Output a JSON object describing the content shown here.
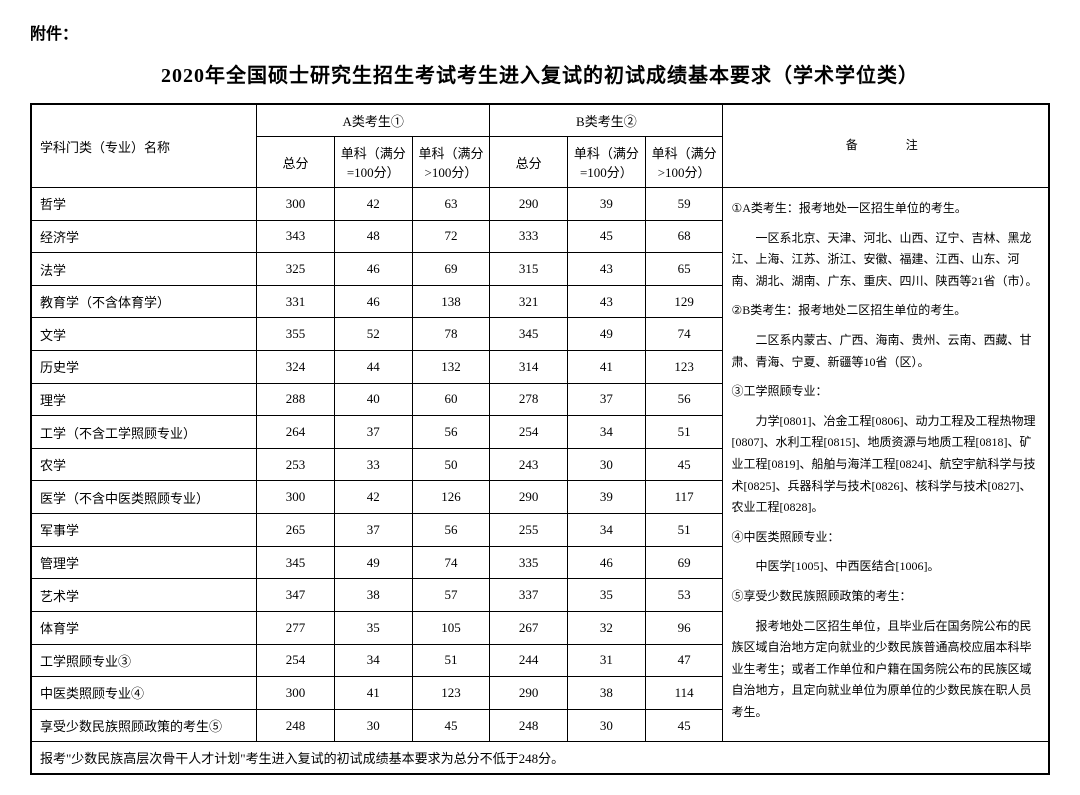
{
  "attachment_label": "附件：",
  "title": "2020年全国硕士研究生招生考试考生进入复试的初试成绩基本要求（学术学位类）",
  "headers": {
    "subject": "学科门类（专业）名称",
    "groupA": "A类考生①",
    "groupB": "B类考生②",
    "total": "总分",
    "single100": "单科（满分=100分）",
    "singleOver100": "单科（满分>100分）",
    "notes": "备　　注"
  },
  "rows": [
    {
      "name": "哲学",
      "a1": "300",
      "a2": "42",
      "a3": "63",
      "b1": "290",
      "b2": "39",
      "b3": "59"
    },
    {
      "name": "经济学",
      "a1": "343",
      "a2": "48",
      "a3": "72",
      "b1": "333",
      "b2": "45",
      "b3": "68"
    },
    {
      "name": "法学",
      "a1": "325",
      "a2": "46",
      "a3": "69",
      "b1": "315",
      "b2": "43",
      "b3": "65"
    },
    {
      "name": "教育学（不含体育学）",
      "a1": "331",
      "a2": "46",
      "a3": "138",
      "b1": "321",
      "b2": "43",
      "b3": "129"
    },
    {
      "name": "文学",
      "a1": "355",
      "a2": "52",
      "a3": "78",
      "b1": "345",
      "b2": "49",
      "b3": "74"
    },
    {
      "name": "历史学",
      "a1": "324",
      "a2": "44",
      "a3": "132",
      "b1": "314",
      "b2": "41",
      "b3": "123"
    },
    {
      "name": "理学",
      "a1": "288",
      "a2": "40",
      "a3": "60",
      "b1": "278",
      "b2": "37",
      "b3": "56"
    },
    {
      "name": "工学（不含工学照顾专业）",
      "a1": "264",
      "a2": "37",
      "a3": "56",
      "b1": "254",
      "b2": "34",
      "b3": "51"
    },
    {
      "name": "农学",
      "a1": "253",
      "a2": "33",
      "a3": "50",
      "b1": "243",
      "b2": "30",
      "b3": "45"
    },
    {
      "name": "医学（不含中医类照顾专业）",
      "a1": "300",
      "a2": "42",
      "a3": "126",
      "b1": "290",
      "b2": "39",
      "b3": "117"
    },
    {
      "name": "军事学",
      "a1": "265",
      "a2": "37",
      "a3": "56",
      "b1": "255",
      "b2": "34",
      "b3": "51"
    },
    {
      "name": "管理学",
      "a1": "345",
      "a2": "49",
      "a3": "74",
      "b1": "335",
      "b2": "46",
      "b3": "69"
    },
    {
      "name": "艺术学",
      "a1": "347",
      "a2": "38",
      "a3": "57",
      "b1": "337",
      "b2": "35",
      "b3": "53"
    },
    {
      "name": "体育学",
      "a1": "277",
      "a2": "35",
      "a3": "105",
      "b1": "267",
      "b2": "32",
      "b3": "96"
    },
    {
      "name": "工学照顾专业③",
      "a1": "254",
      "a2": "34",
      "a3": "51",
      "b1": "244",
      "b2": "31",
      "b3": "47"
    },
    {
      "name": "中医类照顾专业④",
      "a1": "300",
      "a2": "41",
      "a3": "123",
      "b1": "290",
      "b2": "38",
      "b3": "114"
    },
    {
      "name": "享受少数民族照顾政策的考生⑤",
      "a1": "248",
      "a2": "30",
      "a3": "45",
      "b1": "248",
      "b2": "30",
      "b3": "45"
    }
  ],
  "footer": "报考\"少数民族高层次骨干人才计划\"考生进入复试的初试成绩基本要求为总分不低于248分。",
  "notes": {
    "n1_title": "①A类考生：报考地处一区招生单位的考生。",
    "n1_body": "一区系北京、天津、河北、山西、辽宁、吉林、黑龙江、上海、江苏、浙江、安徽、福建、江西、山东、河南、湖北、湖南、广东、重庆、四川、陕西等21省（市）。",
    "n2_title": "②B类考生：报考地处二区招生单位的考生。",
    "n2_body": "二区系内蒙古、广西、海南、贵州、云南、西藏、甘肃、青海、宁夏、新疆等10省（区）。",
    "n3_title": "③工学照顾专业：",
    "n3_body": "力学[0801]、冶金工程[0806]、动力工程及工程热物理[0807]、水利工程[0815]、地质资源与地质工程[0818]、矿业工程[0819]、船舶与海洋工程[0824]、航空宇航科学与技术[0825]、兵器科学与技术[0826]、核科学与技术[0827]、农业工程[0828]。",
    "n4_title": "④中医类照顾专业：",
    "n4_body": "中医学[1005]、中西医结合[1006]。",
    "n5_title": "⑤享受少数民族照顾政策的考生：",
    "n5_body": "报考地处二区招生单位，且毕业后在国务院公布的民族区域自治地方定向就业的少数民族普通高校应届本科毕业生考生；或者工作单位和户籍在国务院公布的民族区域自治地方，且定向就业单位为原单位的少数民族在职人员考生。"
  }
}
